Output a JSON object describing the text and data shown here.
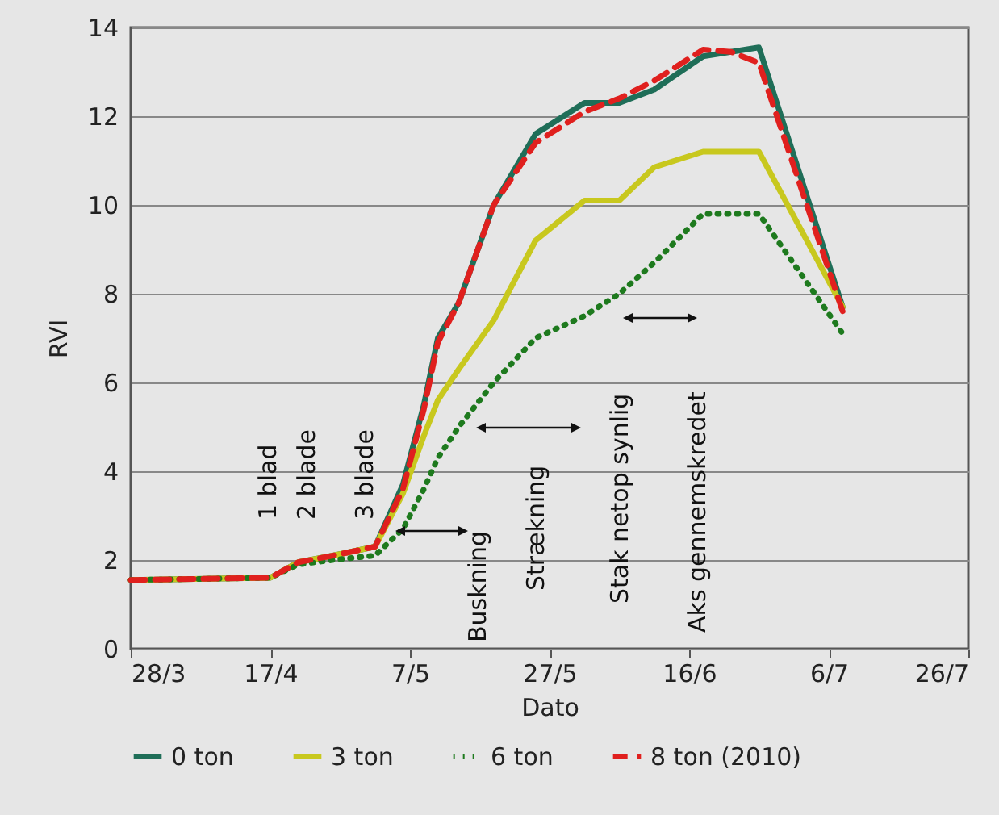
{
  "chart_data": {
    "type": "line",
    "xlabel": "Dato",
    "ylabel": "RVI",
    "x": [
      "--03-28",
      "--04-17",
      "--04-21",
      "--04-26",
      "--05-02",
      "--05-06",
      "--05-09",
      "--05-11",
      "--05-14",
      "--05-19",
      "--05-25",
      "--06-01",
      "--06-06",
      "--06-11",
      "--06-18",
      "--06-22",
      "--06-26",
      "--07-08"
    ],
    "series": [
      {
        "name": "0 ton",
        "color": "#1f6e58",
        "line_style": "solid",
        "values": [
          1.55,
          1.6,
          1.95,
          2.1,
          2.3,
          3.7,
          5.5,
          7.0,
          7.8,
          10.0,
          11.6,
          12.3,
          12.3,
          12.6,
          13.35,
          13.45,
          13.55,
          7.7
        ]
      },
      {
        "name": "3 ton",
        "color": "#c8c81e",
        "line_style": "solid",
        "values": [
          1.55,
          1.6,
          1.95,
          2.1,
          2.3,
          3.5,
          4.8,
          5.6,
          6.3,
          7.4,
          9.2,
          10.1,
          10.1,
          10.85,
          11.2,
          11.2,
          11.2,
          7.7
        ]
      },
      {
        "name": "6 ton",
        "color": "#1e7a1e",
        "line_style": "dotted",
        "values": [
          1.55,
          1.6,
          1.9,
          2.0,
          2.1,
          2.7,
          3.6,
          4.3,
          5.0,
          6.0,
          7.0,
          7.5,
          8.0,
          8.7,
          9.8,
          9.8,
          9.8,
          7.1
        ]
      },
      {
        "name": "8 ton (2010)",
        "color": "#e0201e",
        "line_style": "dashed",
        "values": [
          1.55,
          1.6,
          1.95,
          2.1,
          2.3,
          3.6,
          5.4,
          6.9,
          7.8,
          10.0,
          11.4,
          12.1,
          12.4,
          12.8,
          13.5,
          13.45,
          13.2,
          7.6
        ]
      }
    ],
    "xlim": [
      "--03-28",
      "--07-26"
    ],
    "xticks": [
      {
        "value": "--03-28",
        "label": "28/3"
      },
      {
        "value": "--04-17",
        "label": "17/4"
      },
      {
        "value": "--05-07",
        "label": "7/5"
      },
      {
        "value": "--05-27",
        "label": "27/5"
      },
      {
        "value": "--06-16",
        "label": "16/6"
      },
      {
        "value": "--07-06",
        "label": "6/7"
      },
      {
        "value": "--07-26",
        "label": "26/7"
      }
    ],
    "ylim": [
      0,
      14
    ],
    "yticks": [
      0,
      2,
      4,
      6,
      8,
      10,
      12,
      14
    ],
    "grid": "y",
    "legend": "bottom",
    "annotations": [
      "1 blad",
      "2 blade",
      "3 blade",
      "Buskning",
      "Strækning",
      "Stak netop synlig",
      "Aks gennemskredet"
    ]
  }
}
